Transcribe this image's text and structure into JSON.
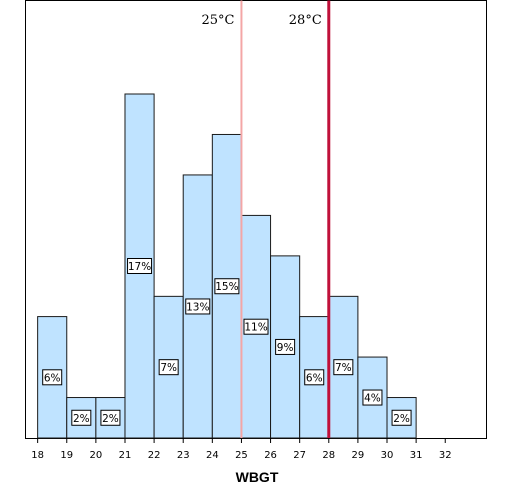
{
  "chart_data": {
    "type": "bar",
    "subtype": "histogram",
    "xlabel": "WBGT",
    "bins": [
      {
        "start": 18,
        "end": 19,
        "percent": 6,
        "label": "6%"
      },
      {
        "start": 19,
        "end": 20,
        "percent": 2,
        "label": "2%"
      },
      {
        "start": 20,
        "end": 21,
        "percent": 2,
        "label": "2%"
      },
      {
        "start": 21,
        "end": 22,
        "percent": 17,
        "label": "17%"
      },
      {
        "start": 22,
        "end": 23,
        "percent": 7,
        "label": "7%"
      },
      {
        "start": 23,
        "end": 24,
        "percent": 13,
        "label": "13%"
      },
      {
        "start": 24,
        "end": 25,
        "percent": 15,
        "label": "15%"
      },
      {
        "start": 25,
        "end": 26,
        "percent": 11,
        "label": "11%"
      },
      {
        "start": 26,
        "end": 27,
        "percent": 9,
        "label": "9%"
      },
      {
        "start": 27,
        "end": 28,
        "percent": 6,
        "label": "6%"
      },
      {
        "start": 28,
        "end": 29,
        "percent": 7,
        "label": "7%"
      },
      {
        "start": 29,
        "end": 30,
        "percent": 4,
        "label": "4%"
      },
      {
        "start": 30,
        "end": 31,
        "percent": 2,
        "label": "2%"
      }
    ],
    "x_ticks": [
      "18",
      "19",
      "20",
      "21",
      "22",
      "23",
      "24",
      "25",
      "26",
      "27",
      "28",
      "29",
      "30",
      "31",
      "32"
    ],
    "xlim": [
      17.6,
      33.4
    ],
    "ylim": [
      0,
      18
    ],
    "reference_lines": [
      {
        "x": 25,
        "label": "25°C",
        "color": "#f4a6a6"
      },
      {
        "x": 28,
        "label": "28°C",
        "color": "#c0103a"
      }
    ],
    "colors": {
      "bar_fill": "#bfe3ff",
      "bar_stroke": "#1a1a1a",
      "frame": "#000000"
    },
    "grid": false,
    "legend": "none"
  }
}
